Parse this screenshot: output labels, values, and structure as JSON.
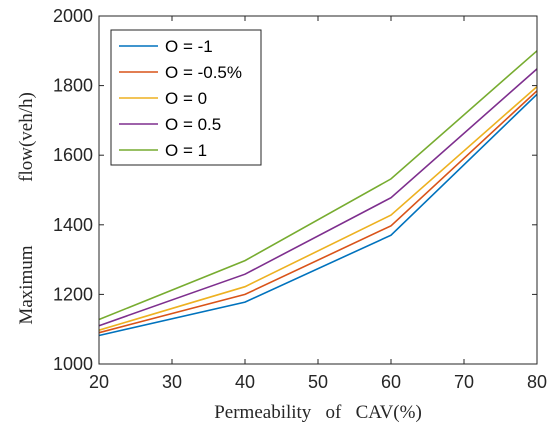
{
  "chart_data": {
    "type": "line",
    "xlabel": "Permeability   of   CAV(%)",
    "ylabel_parts": [
      "Maximum",
      "flow(veh/h)"
    ],
    "x": [
      20,
      40,
      60,
      80
    ],
    "xlim": [
      20,
      80
    ],
    "ylim": [
      1000,
      2000
    ],
    "xticks": [
      20,
      30,
      40,
      50,
      60,
      70,
      80
    ],
    "yticks": [
      1000,
      1200,
      1400,
      1600,
      1800,
      2000
    ],
    "grid": false,
    "legend_position": "top-left",
    "series": [
      {
        "name": "O = -1",
        "color": "#0072BD",
        "values": [
          1082,
          1178,
          1370,
          1775
        ]
      },
      {
        "name": "O = -0.5%",
        "color": "#D95319",
        "values": [
          1090,
          1200,
          1397,
          1785
        ]
      },
      {
        "name": "O = 0",
        "color": "#EDB120",
        "values": [
          1097,
          1222,
          1428,
          1797
        ]
      },
      {
        "name": "O = 0.5",
        "color": "#7E2F8E",
        "values": [
          1110,
          1258,
          1478,
          1848
        ]
      },
      {
        "name": "O = 1",
        "color": "#77AC30",
        "values": [
          1128,
          1297,
          1532,
          1900
        ]
      }
    ]
  }
}
